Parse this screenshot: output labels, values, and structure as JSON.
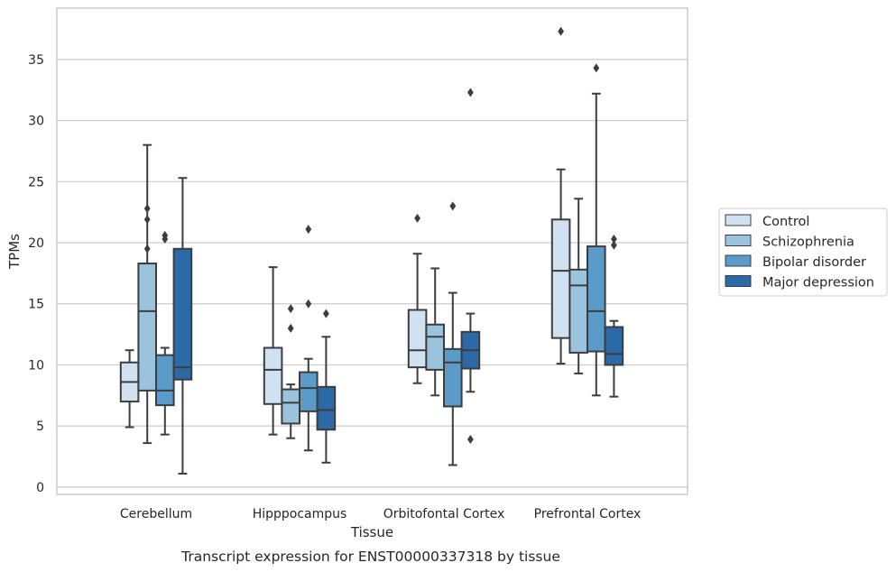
{
  "chart_data": {
    "type": "box",
    "title": "",
    "caption": "Transcript expression for ENST00000337318 by tissue",
    "xlabel": "Tissue",
    "ylabel": "TPMs",
    "ylim": [
      -0.6,
      39.2
    ],
    "yticks": [
      0,
      5,
      10,
      15,
      20,
      25,
      30,
      35
    ],
    "ytick_labels": [
      "0",
      "5",
      "10",
      "15",
      "20",
      "25",
      "30",
      "35"
    ],
    "grid": "horizontal",
    "legend_position": "right",
    "categories": [
      "Cerebellum",
      "Hipppocampus",
      "Orbitofontal Cortex",
      "Prefrontal Cortex"
    ],
    "series": [
      {
        "name": "Control",
        "color": "#d0e1f2",
        "boxes": [
          {
            "whislo": 4.9,
            "q1": 7.0,
            "med": 8.6,
            "q3": 10.2,
            "whishi": 11.2,
            "fliers": []
          },
          {
            "whislo": 4.3,
            "q1": 6.8,
            "med": 9.6,
            "q3": 11.4,
            "whishi": 18.0,
            "fliers": []
          },
          {
            "whislo": 8.5,
            "q1": 9.8,
            "med": 11.2,
            "q3": 14.5,
            "whishi": 19.1,
            "fliers": [
              22.0
            ]
          },
          {
            "whislo": 10.1,
            "q1": 12.2,
            "med": 17.7,
            "q3": 21.9,
            "whishi": 26.0,
            "fliers": [
              37.3
            ]
          }
        ]
      },
      {
        "name": "Schizophrenia",
        "color": "#9ac3de",
        "boxes": [
          {
            "whislo": 3.6,
            "q1": 7.9,
            "med": 14.4,
            "q3": 18.3,
            "whishi": 28.0,
            "fliers": [
              22.8,
              21.9,
              19.5
            ]
          },
          {
            "whislo": 4.0,
            "q1": 5.2,
            "med": 6.9,
            "q3": 8.0,
            "whishi": 8.4,
            "fliers": [
              14.6,
              13.0
            ]
          },
          {
            "whislo": 7.5,
            "q1": 9.6,
            "med": 12.3,
            "q3": 13.3,
            "whishi": 17.9,
            "fliers": []
          },
          {
            "whislo": 9.3,
            "q1": 11.0,
            "med": 16.5,
            "q3": 17.8,
            "whishi": 23.6,
            "fliers": []
          }
        ]
      },
      {
        "name": "Bipolar disorder",
        "color": "#5a9bc9",
        "boxes": [
          {
            "whislo": 4.3,
            "q1": 6.7,
            "med": 7.9,
            "q3": 10.8,
            "whishi": 11.4,
            "fliers": [
              20.6,
              20.3
            ]
          },
          {
            "whislo": 3.0,
            "q1": 6.2,
            "med": 8.1,
            "q3": 9.4,
            "whishi": 10.5,
            "fliers": [
              21.1,
              15.0
            ]
          },
          {
            "whislo": 1.8,
            "q1": 6.6,
            "med": 10.2,
            "q3": 11.3,
            "whishi": 15.9,
            "fliers": [
              23.0
            ]
          },
          {
            "whislo": 7.5,
            "q1": 11.1,
            "med": 14.4,
            "q3": 19.7,
            "whishi": 32.2,
            "fliers": [
              34.3
            ]
          }
        ]
      },
      {
        "name": "Major depression",
        "color": "#2b69a7",
        "boxes": [
          {
            "whislo": 1.1,
            "q1": 8.8,
            "med": 9.8,
            "q3": 19.5,
            "whishi": 25.3,
            "fliers": []
          },
          {
            "whislo": 2.0,
            "q1": 4.7,
            "med": 6.3,
            "q3": 8.2,
            "whishi": 12.3,
            "fliers": [
              14.2
            ]
          },
          {
            "whislo": 7.8,
            "q1": 9.7,
            "med": 11.2,
            "q3": 12.7,
            "whishi": 14.2,
            "fliers": [
              32.3,
              3.9
            ]
          },
          {
            "whislo": 7.4,
            "q1": 10.0,
            "med": 10.9,
            "q3": 13.1,
            "whishi": 13.6,
            "fliers": [
              20.3,
              19.8
            ]
          }
        ]
      }
    ]
  }
}
